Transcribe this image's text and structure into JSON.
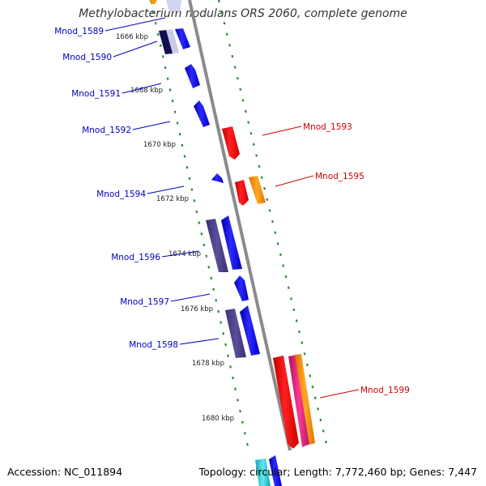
{
  "title": "Methylobacterium nodulans ORS 2060, complete genome",
  "footer": {
    "accession": "Accession: NC_011894",
    "stats": "Topology: circular; Length: 7,772,460 bp; Genes: 7,447"
  },
  "colors": {
    "backbone": "#8a8a8a",
    "dotted_track": "#2e8b2e",
    "forward_label": "#0000c0",
    "reverse_label": "#d00000",
    "cds_blue": "#1515e8",
    "dark_purple": "#4a3f88",
    "red": "#ee1111",
    "orange": "#ff9900",
    "magenta": "#e0207a",
    "cyan": "#20c8d8"
  },
  "ticks": [
    "1666 kbp",
    "1668 kbp",
    "1670 kbp",
    "1672 kbp",
    "1674 kbp",
    "1676 kbp",
    "1678 kbp",
    "1680 kbp"
  ],
  "forward_genes": [
    "Mnod_1589",
    "Mnod_1590",
    "Mnod_1591",
    "Mnod_1592",
    "Mnod_1594",
    "Mnod_1596",
    "Mnod_1597",
    "Mnod_1598"
  ],
  "reverse_genes": [
    "Mnod_1593",
    "Mnod_1595",
    "Mnod_1599"
  ]
}
